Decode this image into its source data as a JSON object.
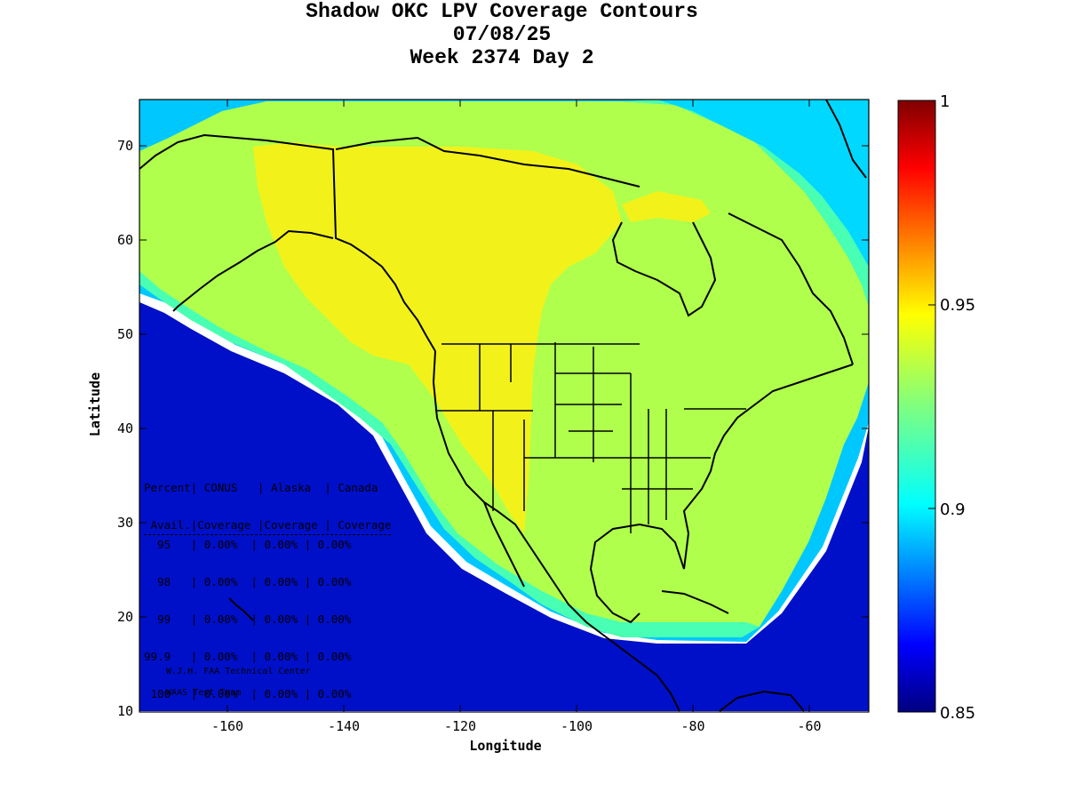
{
  "title": {
    "line1": "Shadow OKC LPV Coverage Contours",
    "line2": "07/08/25",
    "line3": "Week 2374 Day 2"
  },
  "axes": {
    "xlabel": "Longitude",
    "ylabel": "Latitude",
    "x_range": [
      -175,
      -50
    ],
    "y_range": [
      10,
      75
    ],
    "x_ticks": [
      "-160",
      "-140",
      "-120",
      "-100",
      "-80",
      "-60"
    ],
    "y_ticks": [
      "70",
      "60",
      "50",
      "40",
      "30",
      "20",
      "10"
    ]
  },
  "colorbar": {
    "range": [
      0.85,
      1
    ],
    "ticks": [
      "1",
      "0.95",
      "0.9",
      "0.85"
    ]
  },
  "colors": {
    "coverage_high": "#f2f21a",
    "coverage_mid": "#b0ff4c",
    "coverage_edge": "#48ffb4",
    "coverage_low": "#00c8ff",
    "coverage_min": "#0018d0"
  },
  "stats": {
    "header1": "Percent| CONUS   | Alaska  | Canada",
    "header2": " Avail.|Coverage |Coverage | Coverage",
    "rows": [
      "  95   | 0.00%  | 0.00% | 0.00%",
      "  98   | 0.00%  | 0.00% | 0.00%",
      "  99   | 0.00%  | 0.00% | 0.00%",
      "99.9   | 0.00%  | 0.00% | 0.00%",
      " 100   | 0.00%  | 0.00% | 0.00%"
    ]
  },
  "credit": {
    "line1": "W.J.H. FAA Technical Center",
    "line2": "WAAS Test Team"
  }
}
